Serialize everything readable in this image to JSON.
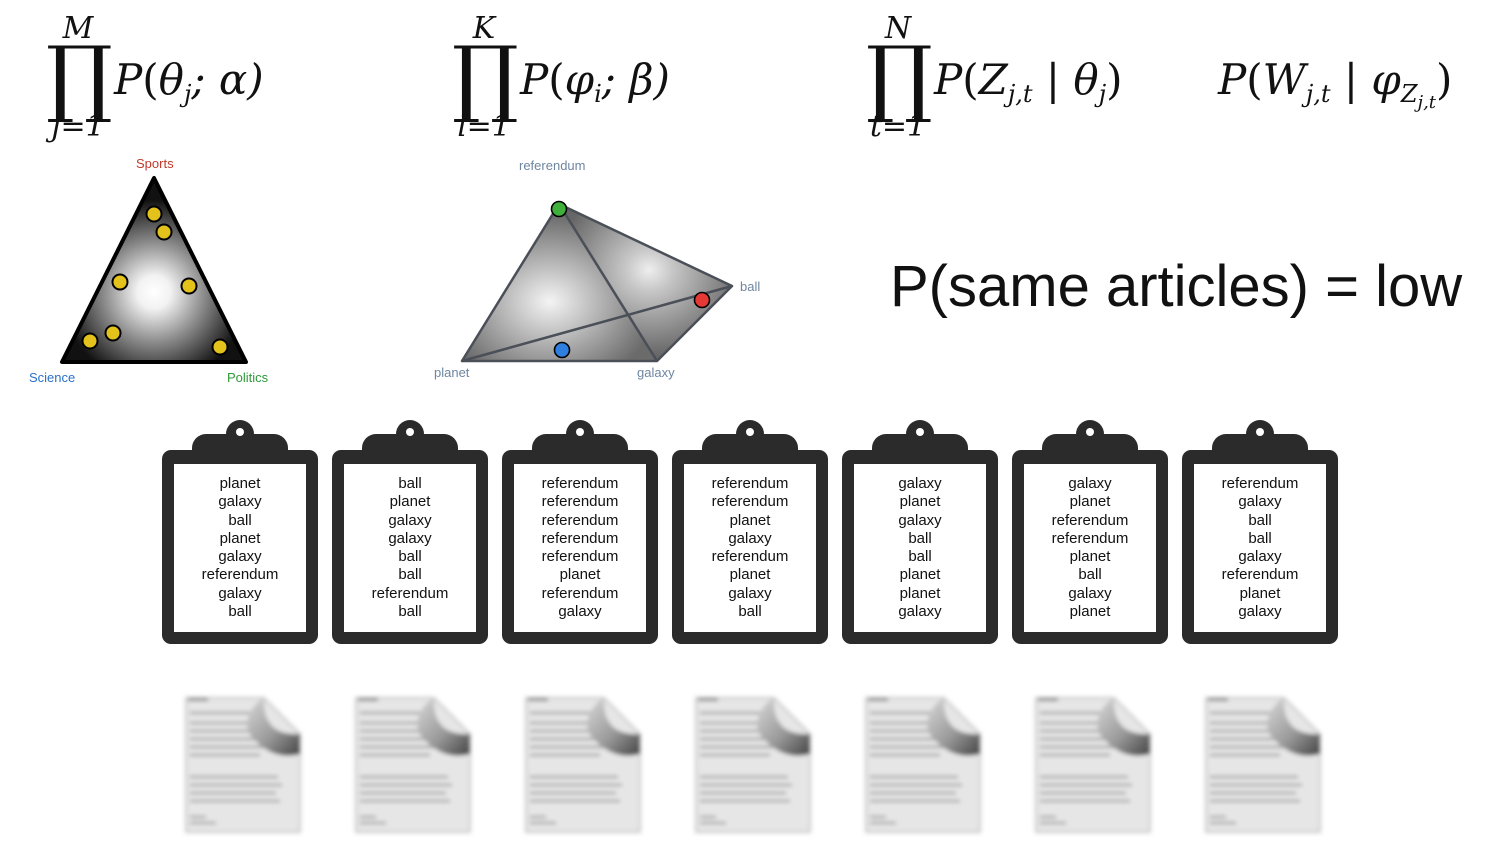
{
  "formulas": [
    {
      "upper": "M",
      "symbol": "∏",
      "lower": "j=1",
      "expr_parts": [
        "P",
        "(",
        "θ",
        "j",
        "; α)"
      ]
    },
    {
      "upper": "K",
      "symbol": "∏",
      "lower": "i=1",
      "expr_parts": [
        "P",
        "(",
        "φ",
        "i",
        "; β)"
      ]
    },
    {
      "upper": "N",
      "symbol": "∏",
      "lower": "t=1",
      "expr_parts": [
        "P",
        "(",
        "Z",
        "j,t",
        " | θ",
        "j",
        ")"
      ]
    },
    {
      "expr_parts": [
        "P",
        "(",
        "W",
        "j,t",
        " | φ",
        "Z",
        "j,t",
        ")"
      ]
    }
  ],
  "headline": "P(same articles) = low",
  "topic_simplex": {
    "labels": {
      "top": "Sports",
      "left": "Science",
      "right": "Politics"
    },
    "colors": {
      "top": "#c0392b",
      "left": "#2a72c9",
      "right": "#2e9a3a",
      "point": "#e3c21c"
    }
  },
  "word_simplex": {
    "labels": {
      "top": "referendum",
      "right": "ball",
      "bottom_left": "planet",
      "bottom_right": "galaxy"
    },
    "label_color": "#6e86a0",
    "points": {
      "green": "#3fb03c",
      "red": "#e53935",
      "blue": "#2f7fe0"
    }
  },
  "clipboards": [
    {
      "words": [
        "planet",
        "galaxy",
        "ball",
        "planet",
        "galaxy",
        "referendum",
        "galaxy",
        "ball"
      ]
    },
    {
      "words": [
        "ball",
        "planet",
        "galaxy",
        "galaxy",
        "ball",
        "ball",
        "referendum",
        "ball"
      ]
    },
    {
      "words": [
        "referendum",
        "referendum",
        "referendum",
        "referendum",
        "referendum",
        "planet",
        "referendum",
        "galaxy"
      ]
    },
    {
      "words": [
        "referendum",
        "referendum",
        "planet",
        "galaxy",
        "referendum",
        "planet",
        "galaxy",
        "ball"
      ]
    },
    {
      "words": [
        "galaxy",
        "planet",
        "galaxy",
        "ball",
        "ball",
        "planet",
        "planet",
        "galaxy"
      ]
    },
    {
      "words": [
        "galaxy",
        "planet",
        "referendum",
        "referendum",
        "planet",
        "ball",
        "galaxy",
        "planet"
      ]
    },
    {
      "words": [
        "referendum",
        "galaxy",
        "ball",
        "ball",
        "galaxy",
        "referendum",
        "planet",
        "galaxy"
      ]
    }
  ],
  "document_icons": [
    "document-icon",
    "document-icon",
    "document-icon",
    "document-icon",
    "document-icon",
    "document-icon",
    "document-icon"
  ]
}
